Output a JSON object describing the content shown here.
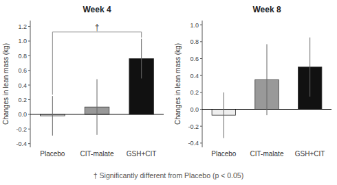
{
  "chart_data": [
    {
      "type": "bar",
      "title": "Week 4",
      "categories": [
        "Placebo",
        "CIT-malate",
        "GSH+CIT"
      ],
      "values": [
        -0.02,
        0.1,
        0.76
      ],
      "errors": [
        0.27,
        0.38,
        0.27
      ],
      "colors": [
        "#ffffff",
        "#999999",
        "#111111"
      ],
      "ylim": [
        -0.45,
        1.28
      ],
      "yticks": [
        -0.4,
        -0.2,
        {
          "value": 0,
          "label": "0.0"
        },
        0.2,
        0.4,
        0.6,
        0.8,
        {
          "value": 1,
          "label": "1.0"
        },
        1.2
      ],
      "ylabel": "Changes in lean mass (kg)",
      "grid": false,
      "annotations": [
        {
          "text": "†",
          "between": [
            "Placebo",
            "GSH+CIT"
          ]
        }
      ],
      "footnote": "† Significantly different from Placebo (p < 0.05)"
    },
    {
      "type": "bar",
      "title": "Week 8",
      "categories": [
        "Placebo",
        "CIT-malate",
        "GSH+CIT"
      ],
      "values": [
        -0.07,
        0.35,
        0.5
      ],
      "errors": [
        0.27,
        0.42,
        0.35
      ],
      "colors": [
        "#eeeeee",
        "#999999",
        "#111111"
      ],
      "ylim": [
        -0.45,
        1.05
      ],
      "yticks": [
        -0.4,
        -0.2,
        {
          "value": 0,
          "label": "0.0"
        },
        0.2,
        0.4,
        0.6,
        0.8,
        {
          "value": 1,
          "label": "1.0"
        }
      ],
      "ylabel": "Changes in lean mass (kg)",
      "grid": false
    }
  ]
}
